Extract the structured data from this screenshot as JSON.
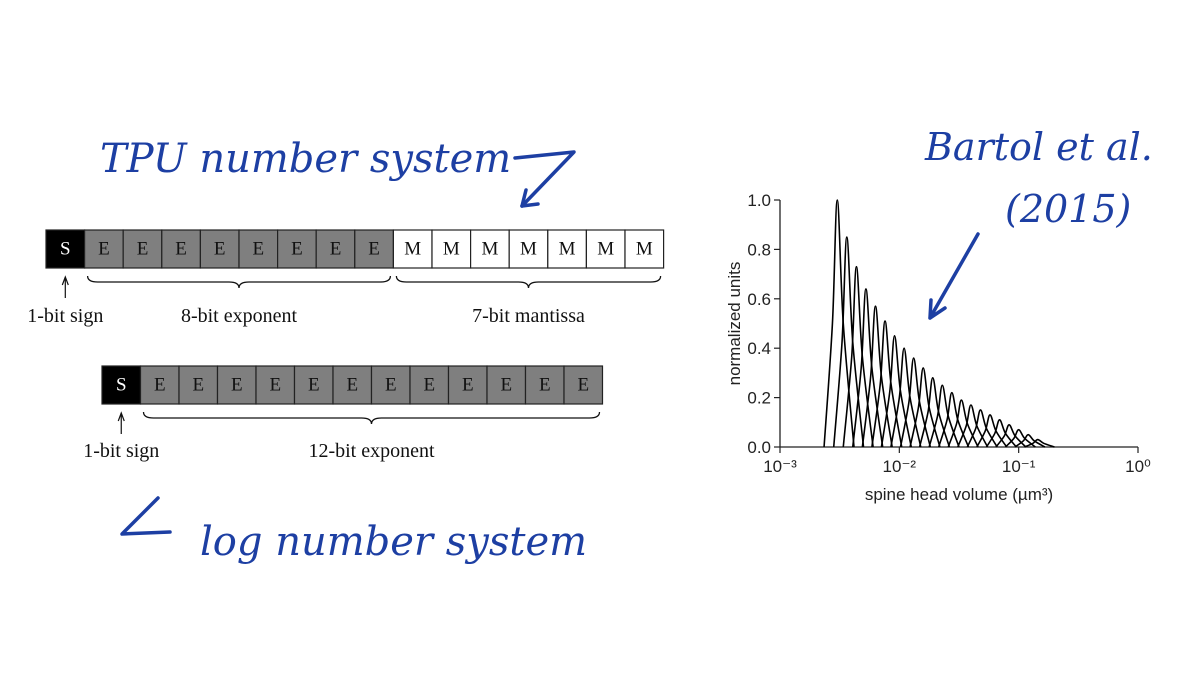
{
  "annotations": {
    "tpu": "TPU number system",
    "log": "log number system",
    "citation_author": "Bartol et al.",
    "citation_year": "(2015)"
  },
  "formats": [
    {
      "cells": [
        "S",
        "E",
        "E",
        "E",
        "E",
        "E",
        "E",
        "E",
        "E",
        "M",
        "M",
        "M",
        "M",
        "M",
        "M",
        "M"
      ],
      "fields": [
        "1-bit sign",
        "8-bit exponent",
        "7-bit mantissa"
      ]
    },
    {
      "cells": [
        "S",
        "E",
        "E",
        "E",
        "E",
        "E",
        "E",
        "E",
        "E",
        "E",
        "E",
        "E",
        "E"
      ],
      "fields": [
        "1-bit sign",
        "12-bit exponent"
      ]
    }
  ],
  "chart_data": {
    "type": "line",
    "xlabel": "spine head volume (µm³)",
    "ylabel": "normalized units",
    "xscale": "log",
    "color": "#000000",
    "xlim": [
      0.001,
      1
    ],
    "xticks": [
      {
        "value": 0.001,
        "label": "10⁻³"
      },
      {
        "value": 0.01,
        "label": "10⁻²"
      },
      {
        "value": 0.1,
        "label": "10⁻¹"
      },
      {
        "value": 1,
        "label": "10⁰"
      }
    ],
    "ylim": [
      0,
      1
    ],
    "yticks": [
      {
        "value": 0,
        "label": "0.0"
      },
      0.2,
      0.4,
      0.6,
      0.8,
      {
        "value": 1,
        "label": "1.0"
      }
    ],
    "series": [
      {
        "x": [
          0.00234,
          0.00275,
          0.00302,
          0.00339,
          0.00417
        ],
        "values": [
          0,
          0.5,
          1.0,
          0.5,
          0
        ]
      },
      {
        "x": [
          0.00282,
          0.00331,
          0.00363,
          0.00407,
          0.00501
        ],
        "values": [
          0,
          0.425,
          0.85,
          0.425,
          0
        ]
      },
      {
        "x": [
          0.00339,
          0.00399,
          0.00437,
          0.0049,
          0.00603
        ],
        "values": [
          0,
          0.365,
          0.73,
          0.365,
          0
        ]
      },
      {
        "x": [
          0.00407,
          0.00479,
          0.00525,
          0.00589,
          0.00725
        ],
        "values": [
          0,
          0.32,
          0.64,
          0.32,
          0
        ]
      },
      {
        "x": [
          0.0049,
          0.00575,
          0.00631,
          0.00708,
          0.00871
        ],
        "values": [
          0,
          0.285,
          0.57,
          0.285,
          0
        ]
      },
      {
        "x": [
          0.00589,
          0.00692,
          0.00759,
          0.00852,
          0.01047
        ],
        "values": [
          0,
          0.255,
          0.51,
          0.255,
          0
        ]
      },
      {
        "x": [
          0.00708,
          0.00832,
          0.00912,
          0.01023,
          0.01259
        ],
        "values": [
          0,
          0.225,
          0.45,
          0.225,
          0
        ]
      },
      {
        "x": [
          0.0085,
          0.01,
          0.01096,
          0.0123,
          0.01512
        ],
        "values": [
          0,
          0.2,
          0.4,
          0.2,
          0
        ]
      },
      {
        "x": [
          0.01023,
          0.01202,
          0.01318,
          0.01479,
          0.01819
        ],
        "values": [
          0,
          0.18,
          0.36,
          0.18,
          0
        ]
      },
      {
        "x": [
          0.0123,
          0.01445,
          0.01585,
          0.01778,
          0.02187
        ],
        "values": [
          0,
          0.16,
          0.32,
          0.16,
          0
        ]
      },
      {
        "x": [
          0.01478,
          0.01737,
          0.01905,
          0.02137,
          0.02629
        ],
        "values": [
          0,
          0.14,
          0.28,
          0.14,
          0
        ]
      },
      {
        "x": [
          0.01778,
          0.02089,
          0.02291,
          0.0257,
          0.03162
        ],
        "values": [
          0,
          0.125,
          0.25,
          0.125,
          0
        ]
      },
      {
        "x": [
          0.02137,
          0.02512,
          0.02754,
          0.0309,
          0.038
        ],
        "values": [
          0,
          0.11,
          0.22,
          0.11,
          0
        ]
      },
      {
        "x": [
          0.02569,
          0.0302,
          0.03311,
          0.03715,
          0.04569
        ],
        "values": [
          0,
          0.095,
          0.19,
          0.095,
          0
        ]
      },
      {
        "x": [
          0.03089,
          0.03631,
          0.03981,
          0.04467,
          0.05494
        ],
        "values": [
          0,
          0.085,
          0.17,
          0.085,
          0
        ]
      },
      {
        "x": [
          0.03714,
          0.04365,
          0.04786,
          0.0537,
          0.06605
        ],
        "values": [
          0,
          0.075,
          0.15,
          0.075,
          0
        ]
      },
      {
        "x": [
          0.04465,
          0.05248,
          0.05754,
          0.06456,
          0.07941
        ],
        "values": [
          0,
          0.065,
          0.13,
          0.065,
          0
        ]
      },
      {
        "x": [
          0.05368,
          0.06309,
          0.06918,
          0.07762,
          0.09547
        ],
        "values": [
          0,
          0.055,
          0.11,
          0.055,
          0
        ]
      },
      {
        "x": [
          0.06455,
          0.07586,
          0.08318,
          0.09333,
          0.1148
        ],
        "values": [
          0,
          0.045,
          0.09,
          0.045,
          0
        ]
      },
      {
        "x": [
          0.0776,
          0.0912,
          0.1,
          0.1122,
          0.138
        ],
        "values": [
          0,
          0.035,
          0.07,
          0.035,
          0
        ]
      },
      {
        "x": [
          0.09328,
          0.1096,
          0.1202,
          0.1349,
          0.1659
        ],
        "values": [
          0,
          0.025,
          0.05,
          0.025,
          0
        ]
      },
      {
        "x": [
          0.1121,
          0.1318,
          0.1445,
          0.1621,
          0.1994
        ],
        "values": [
          0,
          0.015,
          0.03,
          0.015,
          0
        ]
      }
    ]
  }
}
